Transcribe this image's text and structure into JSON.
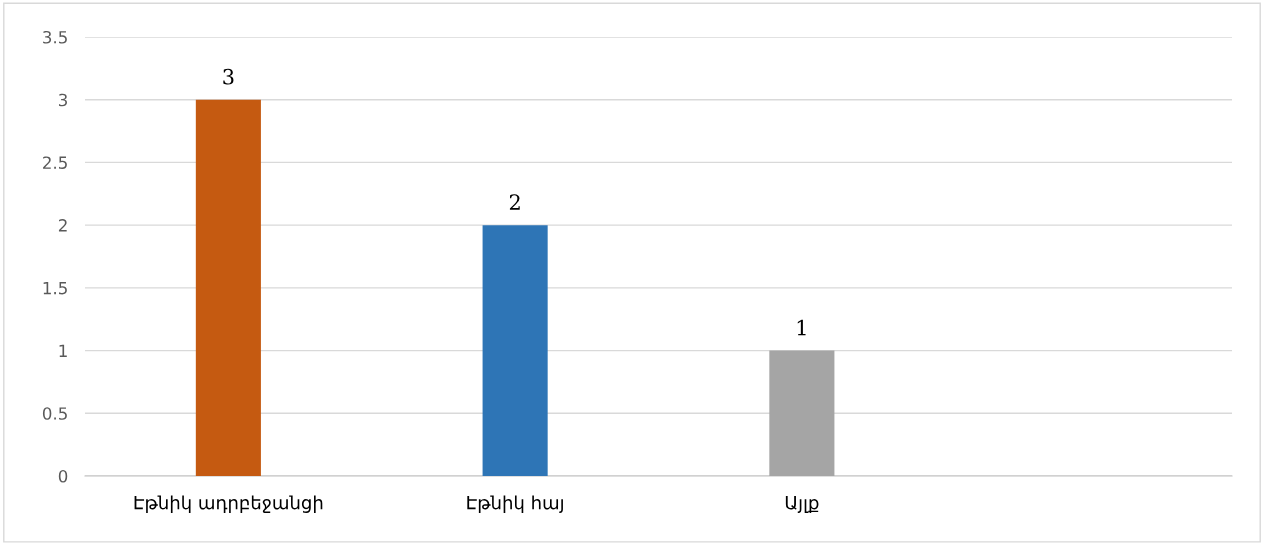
{
  "chart_data": {
    "type": "bar",
    "categories": [
      "Էթնիկ ադրբեջանցի",
      "Էթնիկ հայ",
      "Այլք",
      null
    ],
    "values": [
      3,
      2,
      1,
      null
    ],
    "colors": [
      "#c55a11",
      "#2e75b6",
      "#a5a5a5",
      "#a5a5a5"
    ],
    "ylim": [
      0,
      3.5
    ],
    "yticks": [
      0,
      0.5,
      1,
      1.5,
      2,
      2.5,
      3,
      3.5
    ],
    "grid": "y",
    "data_labels": true,
    "legend": false
  }
}
